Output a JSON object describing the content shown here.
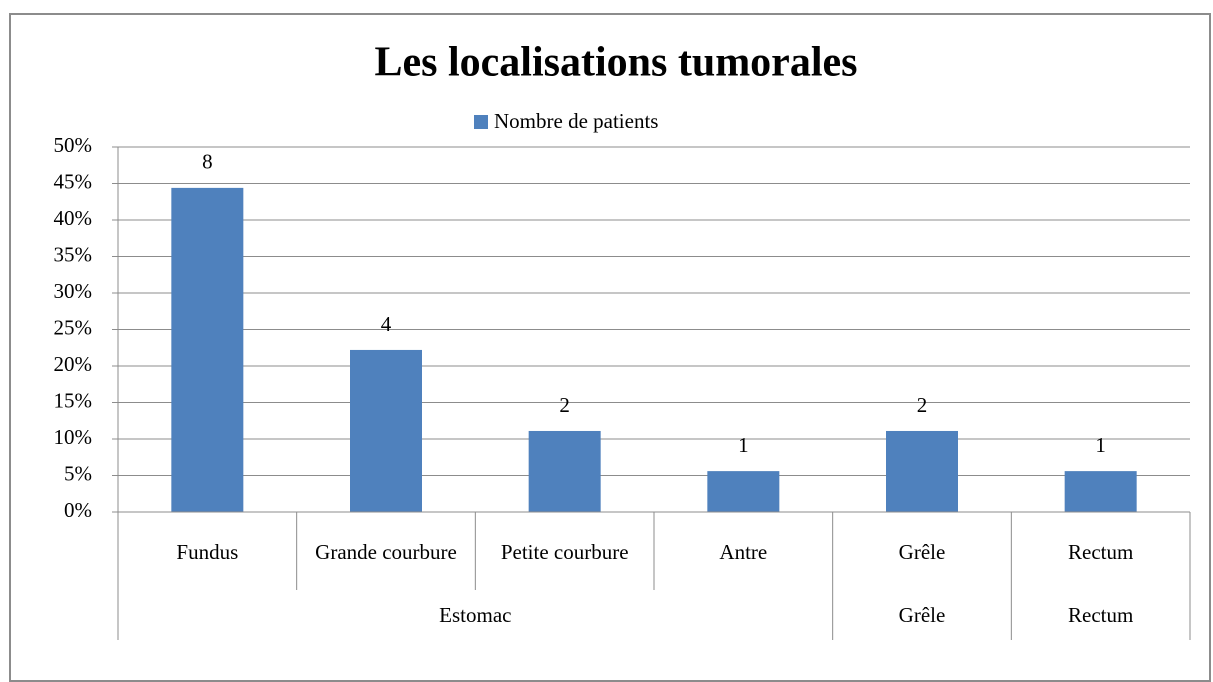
{
  "chart_data": {
    "type": "bar",
    "title": "Les localisations tumorales",
    "categories": [
      "Fundus",
      "Grande courbure",
      "Petite courbure",
      "Antre",
      "Grêle",
      "Rectum"
    ],
    "groups": [
      {
        "name": "Estomac",
        "size": 4
      },
      {
        "name": "Grêle",
        "size": 1
      },
      {
        "name": "Rectum",
        "size": 1
      }
    ],
    "series": [
      {
        "name": "Nombre de patients",
        "color": "#4f81bd",
        "values": [
          44.4,
          22.2,
          11.1,
          5.6,
          11.1,
          5.6
        ]
      }
    ],
    "data_labels": [
      8,
      4,
      2,
      1,
      2,
      1
    ],
    "ylim": [
      0,
      50
    ],
    "yticks": [
      {
        "value": 0,
        "label": "0%"
      },
      {
        "value": 5,
        "label": "5%"
      },
      {
        "value": 10,
        "label": "10%"
      },
      {
        "value": 15,
        "label": "15%"
      },
      {
        "value": 20,
        "label": "20%"
      },
      {
        "value": 25,
        "label": "25%"
      },
      {
        "value": 30,
        "label": "30%"
      },
      {
        "value": 35,
        "label": "35%"
      },
      {
        "value": 40,
        "label": "40%"
      },
      {
        "value": 45,
        "label": "45%"
      },
      {
        "value": 50,
        "label": "50%"
      }
    ],
    "grid": true,
    "legend": "top"
  }
}
